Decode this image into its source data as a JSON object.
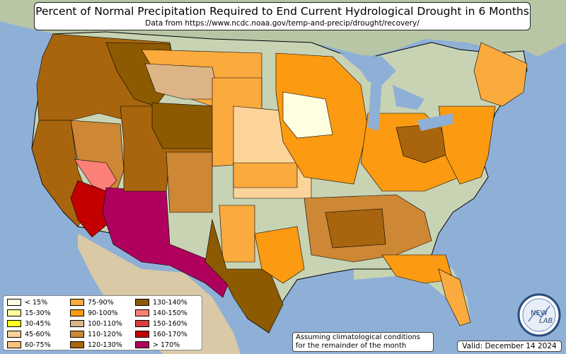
{
  "title": "Percent of Normal Precipitation Required to End Current Hydrological Drought in 6 Months",
  "subtitle": "Data from https://www.ncdc.noaa.gov/temp-and-precip/drought/recovery/",
  "legend": [
    {
      "label": "< 15%",
      "color": "#fefee0"
    },
    {
      "label": "15-30%",
      "color": "#fdfd9d"
    },
    {
      "label": "30-45%",
      "color": "#fdfd1e"
    },
    {
      "label": "45-60%",
      "color": "#fcd49a"
    },
    {
      "label": "60-75%",
      "color": "#fcc17c"
    },
    {
      "label": "75-90%",
      "color": "#fbaa3e"
    },
    {
      "label": "90-100%",
      "color": "#fc9a12"
    },
    {
      "label": "100-110%",
      "color": "#ddb486"
    },
    {
      "label": "110-120%",
      "color": "#cd8735"
    },
    {
      "label": "120-130%",
      "color": "#a8650d"
    },
    {
      "label": "130-140%",
      "color": "#8c5a00"
    },
    {
      "label": "140-150%",
      "color": "#fb8077"
    },
    {
      "label": "150-160%",
      "color": "#da3e3e"
    },
    {
      "label": "160-170%",
      "color": "#c20000"
    },
    {
      "label": "> 170%",
      "color": "#b0005e"
    }
  ],
  "note": {
    "line1": "Assuming climatological conditions",
    "line2": "for the remainder of the month"
  },
  "valid": "Valid: December 14 2024",
  "logo": {
    "text_top": "NEW",
    "text_bottom": "LAB"
  },
  "colors": {
    "ocean": "#8fb0d6",
    "land": "#c8d3b4",
    "border": "#000000"
  }
}
